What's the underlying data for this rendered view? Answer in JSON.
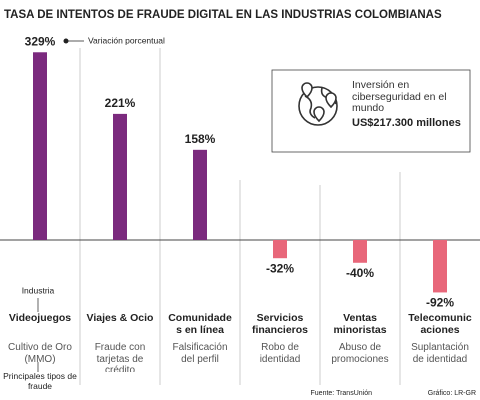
{
  "chart_data": {
    "type": "bar",
    "title": "TASA DE INTENTOS DE FRAUDE DIGITAL EN LAS INDUSTRIAS COLOMBIANAS",
    "value_axis_label": "Variación porcentual",
    "category_label": "Industria",
    "subcategory_label": "Principales tipos de fraude",
    "categories": [
      "Videojuegos",
      "Viajes & Ocio",
      "Comunidades en línea",
      "Servicios financieros",
      "Ventas minoristas",
      "Telecomunicaciones"
    ],
    "fraud_types": [
      "Cultivo de Oro (MMO)",
      "Fraude con tarjetas de crédito",
      "Falsificación del perfil",
      "Robo de identidad",
      "Abuso de promociones",
      "Suplantación de identidad"
    ],
    "values": [
      329,
      221,
      158,
      -32,
      -40,
      -92
    ],
    "value_labels": [
      "329%",
      "221%",
      "158%",
      "-32%",
      "-40%",
      "-92%"
    ],
    "positive_color": "#7b2a7e",
    "negative_color": "#e8677a",
    "ylim": [
      -100,
      340
    ],
    "annotation": {
      "text": "Inversión en ciberseguridad en el mundo",
      "amount": "US$217.300 millones"
    },
    "source": "Fuente: TransUnión",
    "credit": "Gráfico: LR-GR"
  }
}
